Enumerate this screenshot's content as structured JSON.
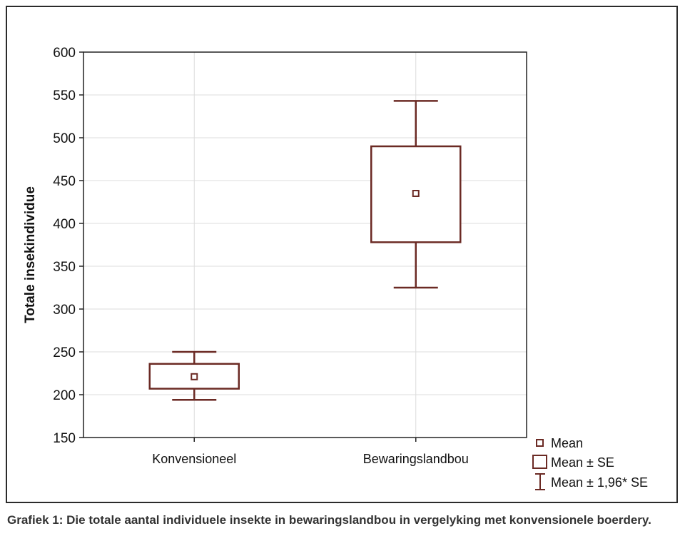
{
  "chart_data": {
    "type": "box",
    "ylabel": "Totale insekindividue",
    "xlabel": "",
    "ylim": [
      150,
      600
    ],
    "yticks": [
      150,
      200,
      250,
      300,
      350,
      400,
      450,
      500,
      550,
      600
    ],
    "grid": true,
    "categories": [
      "Konvensioneel",
      "Bewaringslandbou"
    ],
    "boxes": [
      {
        "category": "Konvensioneel",
        "mean": 221,
        "se_low": 207,
        "se_high": 236,
        "ci_low": 194,
        "ci_high": 250
      },
      {
        "category": "Bewaringslandbou",
        "mean": 435,
        "se_low": 378,
        "se_high": 490,
        "ci_low": 325,
        "ci_high": 543
      }
    ],
    "legend": {
      "placement": "bottom-right",
      "mean": "Mean",
      "se": "Mean ± SE",
      "ci": "Mean ± 1,96* SE"
    }
  },
  "colors": {
    "series": "#6b2a24",
    "grid": "#dcdcdc",
    "axis": "#222222"
  },
  "caption": "Grafiek 1: Die totale aantal individuele insekte in bewaringslandbou in vergelyking met konvensionele boerdery."
}
